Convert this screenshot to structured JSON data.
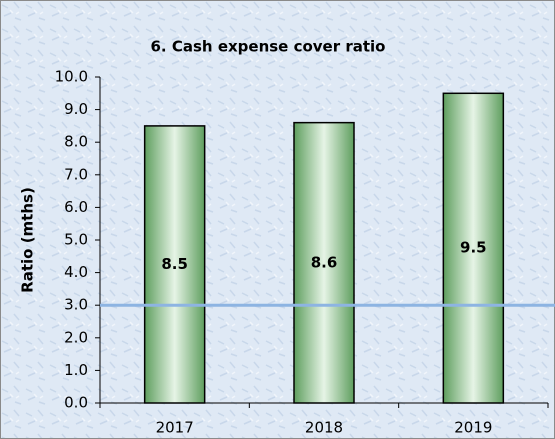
{
  "chart_data": {
    "type": "bar",
    "title": "6. Cash expense cover ratio",
    "y_axis_label": "Ratio (mths)",
    "categories": [
      "2017",
      "2018",
      "2019"
    ],
    "values": [
      8.5,
      8.6,
      9.5
    ],
    "color": "#a9d5a9",
    "reference_line": 3.0,
    "reference_line_color": "#8db4e2",
    "ylim": [
      0,
      10
    ],
    "yticks": [
      {
        "value": 0,
        "label": "0.0"
      },
      {
        "value": 1,
        "label": "1.0"
      },
      {
        "value": 2,
        "label": "2.0"
      },
      {
        "value": 3,
        "label": "3.0"
      },
      {
        "value": 4,
        "label": "4.0"
      },
      {
        "value": 5,
        "label": "5.0"
      },
      {
        "value": 6,
        "label": "6.0"
      },
      {
        "value": 7,
        "label": "7.0"
      },
      {
        "value": 8,
        "label": "8.0"
      },
      {
        "value": 9,
        "label": "9.0"
      },
      {
        "value": 10,
        "label": "10.0"
      }
    ],
    "grid": false
  }
}
